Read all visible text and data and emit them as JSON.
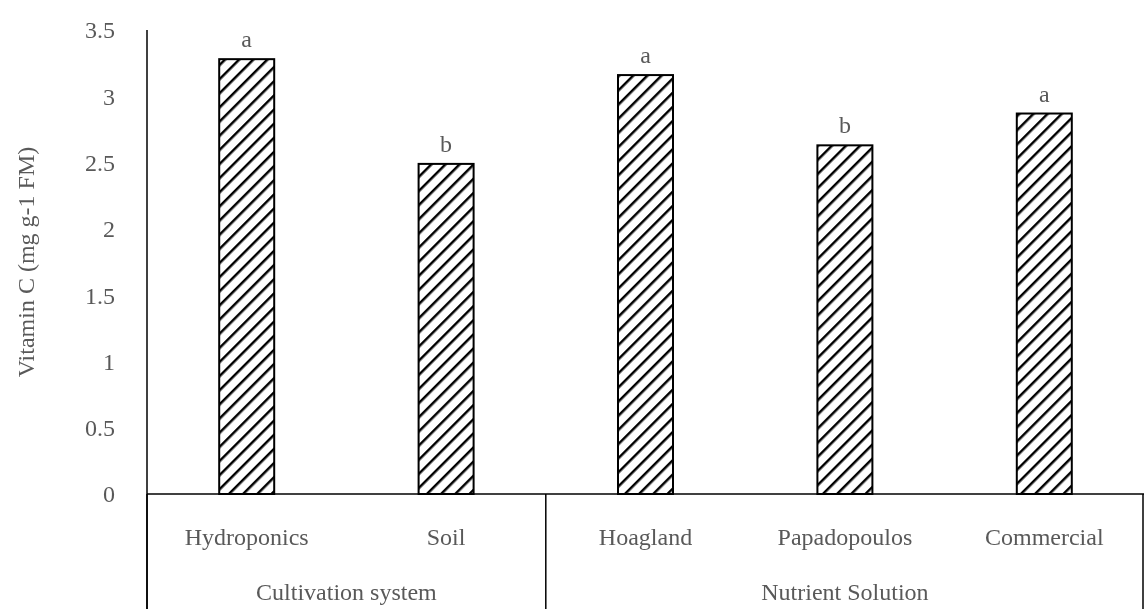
{
  "chart_data": {
    "type": "bar",
    "ylabel": "Vitamin C (mg g-1 FM)",
    "categories": [
      "Hydroponics",
      "Soil",
      "Hoagland",
      "Papadopoulos",
      "Commercial"
    ],
    "values": [
      3.28,
      2.49,
      3.16,
      2.63,
      2.87
    ],
    "color": "#000000",
    "ylim": [
      0,
      3.5
    ],
    "yticks": [
      0,
      0.5,
      1,
      1.5,
      2,
      2.5,
      3,
      3.5
    ],
    "grid": false,
    "annotations": [
      {
        "text": "a",
        "x": "Hydroponics",
        "y": 3.28
      },
      {
        "text": "b",
        "x": "Soil",
        "y": 2.49
      },
      {
        "text": "a",
        "x": "Hoagland",
        "y": 3.16
      },
      {
        "text": "b",
        "x": "Papadopoulos",
        "y": 2.63
      },
      {
        "text": "a",
        "x": "Commercial",
        "y": 2.87
      },
      "Cultivation system",
      "Nutrient Solution"
    ]
  }
}
